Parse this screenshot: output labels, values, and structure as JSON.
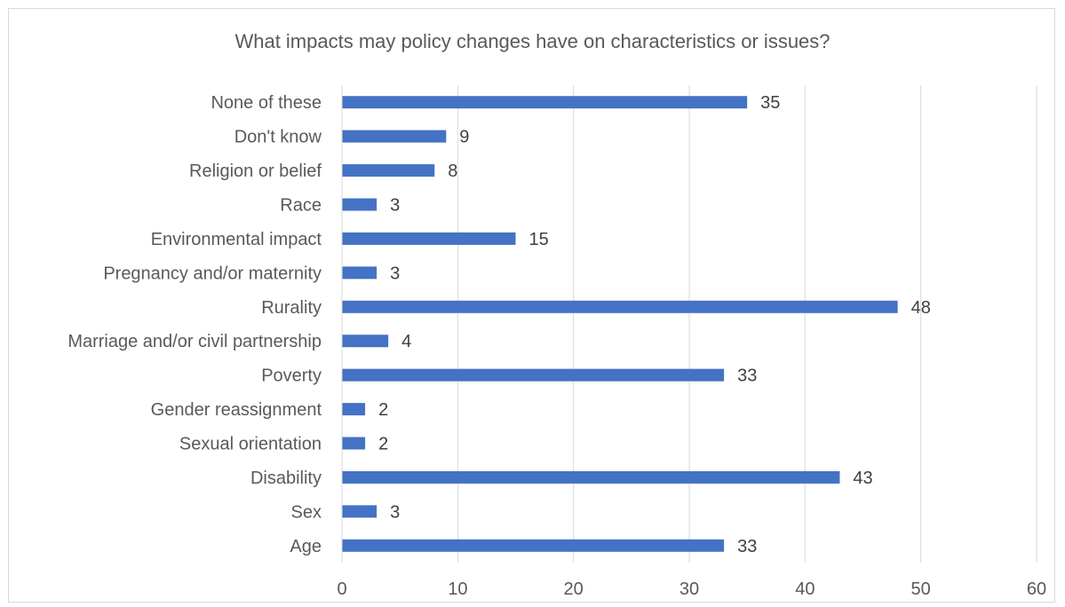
{
  "chart_data": {
    "type": "bar",
    "orientation": "horizontal",
    "title": "What impacts may policy changes have on characteristics or issues?",
    "categories": [
      "None of these",
      "Don't know",
      "Religion or belief",
      "Race",
      "Environmental impact",
      "Pregnancy and/or maternity",
      "Rurality",
      "Marriage and/or civil partnership",
      "Poverty",
      "Gender reassignment",
      "Sexual orientation",
      "Disability",
      "Sex",
      "Age"
    ],
    "values": [
      35,
      9,
      8,
      3,
      15,
      3,
      48,
      4,
      33,
      2,
      2,
      43,
      3,
      33
    ],
    "xlim": [
      0,
      60
    ],
    "xticks": [
      0,
      10,
      20,
      30,
      40,
      50,
      60
    ],
    "grid": "vertical",
    "data_labels": true,
    "bar_color": "#4472c4",
    "legend": "none"
  }
}
